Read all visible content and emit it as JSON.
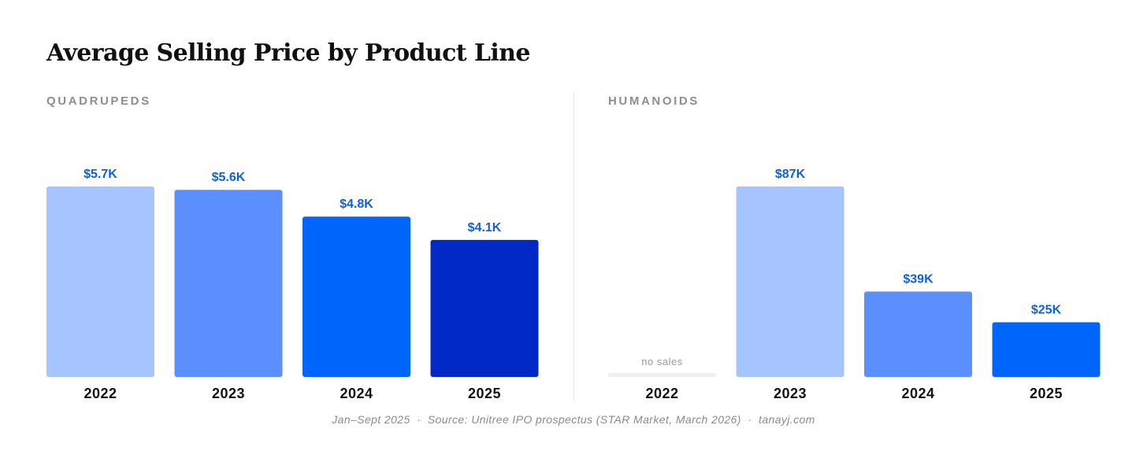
{
  "title": "Average Selling Price by Product Line",
  "footer": "Jan–Sept 2025  ·  Source: Unitree IPO prospectus (STAR Market, March 2026)  ·  tanayj.com",
  "colors": {
    "light": "#a6c4fd",
    "mid": "#5b8ffd",
    "bright": "#0066fb",
    "dark": "#0029c5",
    "label": "#1060d8",
    "tick": "#111111",
    "nosales_bar": "#efefef",
    "nosales_text": "#9a9a9a"
  },
  "chart_data": [
    {
      "type": "bar",
      "panel": "quadrupeds",
      "title": "QUADRUPEDS",
      "categories": [
        "2022",
        "2023",
        "2024",
        "2025"
      ],
      "values": [
        5.7,
        5.6,
        4.8,
        4.1
      ],
      "unit": "$K",
      "data_labels": [
        "$5.7K",
        "$5.6K",
        "$4.8K",
        "$4.1K"
      ],
      "bar_colors": [
        "#a6c4fd",
        "#5b8ffd",
        "#0066fb",
        "#0029c5"
      ],
      "ylim": [
        0,
        5.7
      ],
      "grid": false
    },
    {
      "type": "bar",
      "panel": "humanoids",
      "title": "HUMANOIDS",
      "categories": [
        "2022",
        "2023",
        "2024",
        "2025"
      ],
      "values": [
        null,
        87,
        39,
        25
      ],
      "unit": "$K",
      "data_labels": [
        "no sales",
        "$87K",
        "$39K",
        "$25K"
      ],
      "bar_colors": [
        "#efefef",
        "#a6c4fd",
        "#5b8ffd",
        "#0066fb"
      ],
      "ylim": [
        0,
        87
      ],
      "grid": false
    }
  ]
}
